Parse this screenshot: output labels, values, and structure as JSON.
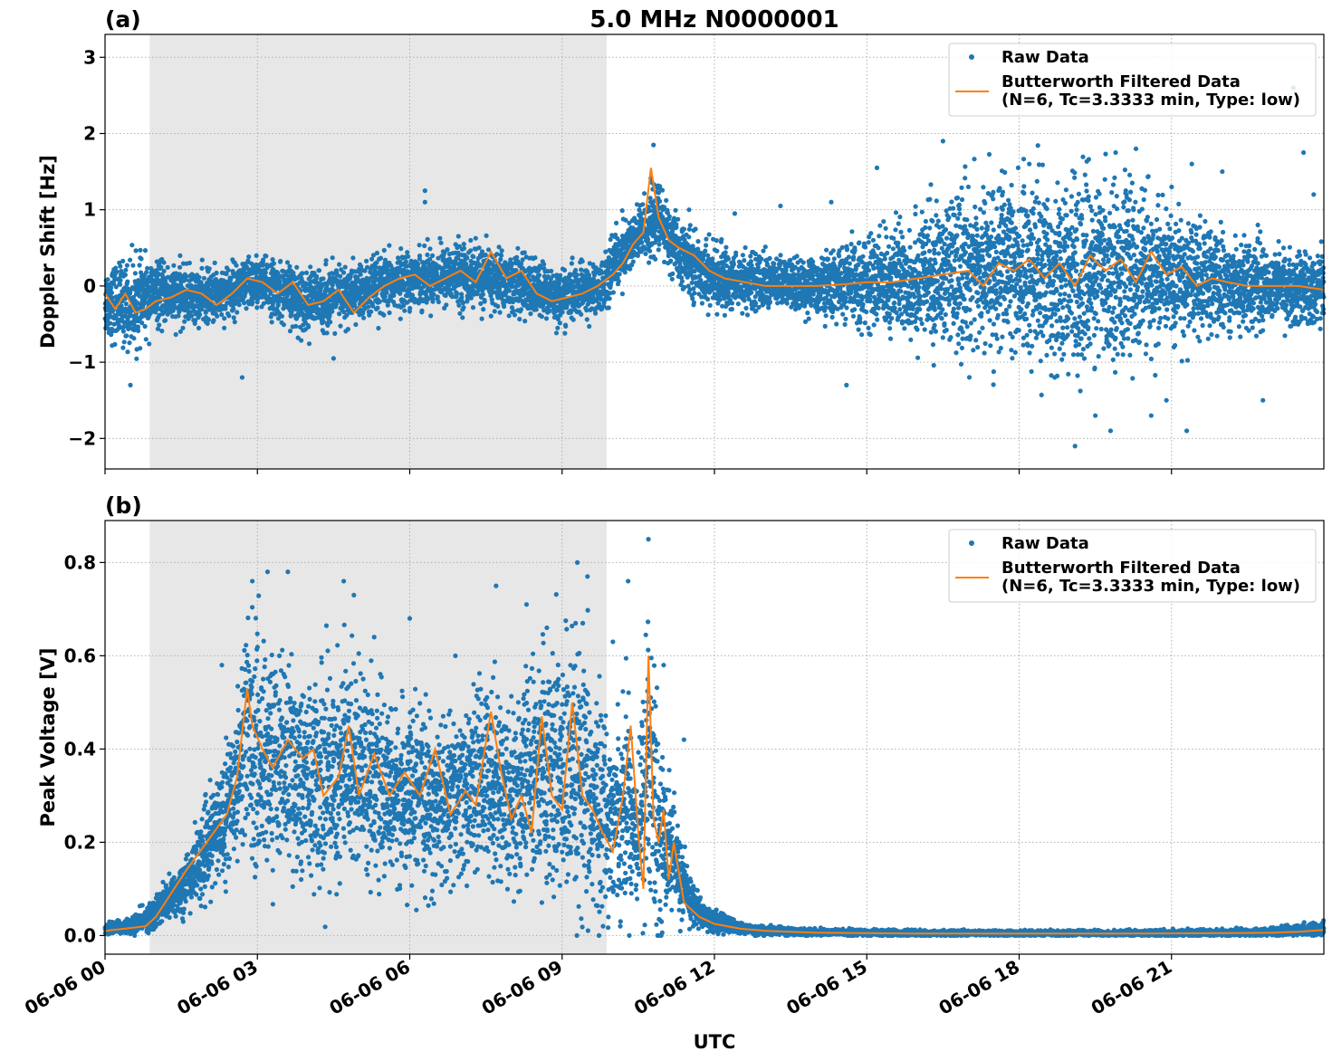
{
  "chart_data": [
    {
      "id": "a",
      "type": "scatter",
      "panel_label": "(a)",
      "title": "5.0 MHz N0000001",
      "xlabel": "",
      "ylabel": "Doppler Shift [Hz]",
      "xlim_hours": [
        0,
        24
      ],
      "ylim": [
        -2.4,
        3.3
      ],
      "yticks": [
        -2,
        -1,
        0,
        1,
        2,
        3
      ],
      "ytick_labels": [
        "−2",
        "−1",
        "0",
        "1",
        "2",
        "3"
      ],
      "shaded_span_hours": [
        0.88,
        9.88
      ],
      "grid": true,
      "legend_position": "top-right",
      "legend": {
        "raw": "Raw Data",
        "filtered_line1": "Butterworth Filtered Data",
        "filtered_line2": "(N=6, Tc=3.3333 min, Type: low)"
      },
      "series": [
        {
          "name": "Raw Data",
          "kind": "scatter",
          "color": "#1f77b4",
          "envelope_hours": [
            0,
            0.5,
            1,
            2,
            3,
            4,
            5,
            6,
            7,
            8,
            9,
            9.8,
            10,
            10.5,
            10.9,
            11.3,
            12,
            13,
            14,
            15,
            16,
            17,
            18,
            19,
            20,
            21,
            22,
            23,
            24
          ],
          "envelope_center": [
            -0.2,
            -0.25,
            -0.1,
            -0.15,
            0.05,
            -0.2,
            -0.1,
            0.1,
            0.15,
            0.05,
            -0.15,
            0.0,
            0.3,
            0.65,
            0.9,
            0.4,
            0.1,
            0.05,
            0.0,
            0.05,
            0.1,
            0.2,
            0.25,
            0.15,
            0.2,
            0.1,
            0.05,
            0.0,
            -0.05
          ],
          "envelope_halfwidth": [
            0.4,
            0.5,
            0.35,
            0.3,
            0.3,
            0.35,
            0.35,
            0.3,
            0.35,
            0.35,
            0.3,
            0.3,
            0.35,
            0.35,
            0.4,
            0.35,
            0.35,
            0.3,
            0.3,
            0.5,
            0.7,
            0.9,
            1.0,
            1.05,
            0.95,
            0.75,
            0.55,
            0.4,
            0.4
          ],
          "outliers": [
            [
              0.5,
              -1.3
            ],
            [
              2.7,
              -1.2
            ],
            [
              4.5,
              -0.95
            ],
            [
              6.3,
              1.25
            ],
            [
              6.3,
              1.1
            ],
            [
              10.8,
              1.85
            ],
            [
              13.3,
              1.05
            ],
            [
              14.3,
              1.1
            ],
            [
              14.6,
              -1.3
            ],
            [
              15.2,
              1.55
            ],
            [
              16.0,
              -0.3
            ],
            [
              16.5,
              1.9
            ],
            [
              17.5,
              -0.5
            ],
            [
              18.2,
              1.6
            ],
            [
              19.1,
              -2.1
            ],
            [
              19.5,
              -1.7
            ],
            [
              19.8,
              -1.9
            ],
            [
              19.9,
              1.75
            ],
            [
              20.1,
              1.25
            ],
            [
              20.3,
              1.8
            ],
            [
              20.6,
              -1.7
            ],
            [
              20.9,
              -1.5
            ],
            [
              21.3,
              -1.9
            ],
            [
              21.4,
              1.6
            ],
            [
              22.0,
              1.5
            ],
            [
              22.8,
              -1.5
            ],
            [
              23.6,
              1.75
            ],
            [
              23.8,
              1.2
            ],
            [
              23.4,
              2.6
            ],
            [
              12.4,
              0.95
            ],
            [
              11.5,
              1.0
            ],
            [
              22.7,
              0.8
            ],
            [
              17.0,
              1.3
            ],
            [
              18.7,
              -1.2
            ]
          ],
          "point_count_hint": 9000
        },
        {
          "name": "Butterworth Filtered Data",
          "kind": "line",
          "color": "#ff7f0e",
          "x_hours": [
            0,
            0.2,
            0.4,
            0.6,
            0.8,
            1.0,
            1.3,
            1.6,
            1.9,
            2.2,
            2.5,
            2.8,
            3.1,
            3.4,
            3.7,
            4.0,
            4.3,
            4.6,
            4.9,
            5.2,
            5.5,
            5.8,
            6.1,
            6.4,
            6.7,
            7.0,
            7.3,
            7.6,
            7.9,
            8.2,
            8.5,
            8.8,
            9.1,
            9.4,
            9.7,
            10.0,
            10.2,
            10.4,
            10.6,
            10.75,
            10.9,
            11.1,
            11.3,
            11.6,
            11.9,
            12.2,
            12.6,
            13.0,
            13.5,
            14.0,
            14.5,
            15.0,
            15.5,
            16.0,
            16.5,
            17.0,
            17.3,
            17.6,
            17.9,
            18.2,
            18.5,
            18.8,
            19.1,
            19.4,
            19.7,
            20.0,
            20.3,
            20.6,
            20.9,
            21.2,
            21.5,
            21.8,
            22.1,
            22.5,
            23.0,
            23.5,
            24.0
          ],
          "y": [
            -0.1,
            -0.3,
            -0.1,
            -0.35,
            -0.3,
            -0.2,
            -0.15,
            -0.05,
            -0.1,
            -0.25,
            -0.1,
            0.1,
            0.05,
            -0.1,
            0.05,
            -0.25,
            -0.2,
            -0.05,
            -0.35,
            -0.15,
            0.0,
            0.1,
            0.15,
            0.0,
            0.1,
            0.2,
            0.05,
            0.45,
            0.1,
            0.2,
            -0.1,
            -0.2,
            -0.15,
            -0.1,
            0.0,
            0.15,
            0.3,
            0.55,
            0.7,
            1.55,
            0.9,
            0.6,
            0.5,
            0.4,
            0.2,
            0.1,
            0.05,
            0.0,
            0.0,
            0.0,
            0.02,
            0.05,
            0.05,
            0.1,
            0.15,
            0.2,
            0.0,
            0.3,
            0.2,
            0.35,
            0.1,
            0.3,
            0.0,
            0.4,
            0.2,
            0.35,
            0.05,
            0.45,
            0.15,
            0.25,
            0.0,
            0.1,
            0.05,
            0.0,
            0.0,
            0.0,
            -0.05
          ]
        }
      ]
    },
    {
      "id": "b",
      "type": "scatter",
      "panel_label": "(b)",
      "title": "",
      "xlabel": "UTC",
      "ylabel": "Peak Voltage [V]",
      "xlim_hours": [
        0,
        24
      ],
      "ylim": [
        -0.04,
        0.89
      ],
      "yticks": [
        0.0,
        0.2,
        0.4,
        0.6,
        0.8
      ],
      "ytick_labels": [
        "0.0",
        "0.2",
        "0.4",
        "0.6",
        "0.8"
      ],
      "xticks_hours": [
        0,
        3,
        6,
        9,
        12,
        15,
        18,
        21
      ],
      "xtick_labels": [
        "06-06 00",
        "06-06 03",
        "06-06 06",
        "06-06 09",
        "06-06 12",
        "06-06 15",
        "06-06 18",
        "06-06 21"
      ],
      "shaded_span_hours": [
        0.88,
        9.88
      ],
      "grid": true,
      "legend_position": "top-right",
      "legend": {
        "raw": "Raw Data",
        "filtered_line1": "Butterworth Filtered Data",
        "filtered_line2": "(N=6, Tc=3.3333 min, Type: low)"
      },
      "series": [
        {
          "name": "Raw Data",
          "kind": "scatter",
          "color": "#1f77b4",
          "envelope_hours": [
            0,
            0.5,
            1,
            1.5,
            2,
            2.5,
            2.8,
            3,
            3.5,
            4,
            4.5,
            5,
            5.5,
            6,
            6.5,
            7,
            7.5,
            8,
            8.5,
            9,
            9.5,
            10,
            10.3,
            10.5,
            10.7,
            10.9,
            11.1,
            11.4,
            11.7,
            12,
            12.5,
            13,
            14,
            16,
            18,
            20,
            22,
            23,
            24
          ],
          "envelope_center": [
            0.015,
            0.02,
            0.05,
            0.1,
            0.18,
            0.3,
            0.45,
            0.38,
            0.38,
            0.33,
            0.35,
            0.38,
            0.3,
            0.3,
            0.28,
            0.3,
            0.35,
            0.3,
            0.35,
            0.35,
            0.3,
            0.25,
            0.3,
            0.2,
            0.4,
            0.2,
            0.2,
            0.1,
            0.05,
            0.03,
            0.015,
            0.01,
            0.007,
            0.005,
            0.005,
            0.005,
            0.006,
            0.008,
            0.015
          ],
          "envelope_halfwidth": [
            0.01,
            0.015,
            0.03,
            0.05,
            0.08,
            0.12,
            0.22,
            0.22,
            0.18,
            0.18,
            0.22,
            0.18,
            0.15,
            0.15,
            0.15,
            0.15,
            0.17,
            0.18,
            0.2,
            0.25,
            0.25,
            0.15,
            0.2,
            0.12,
            0.35,
            0.18,
            0.12,
            0.06,
            0.03,
            0.02,
            0.01,
            0.008,
            0.006,
            0.005,
            0.005,
            0.005,
            0.006,
            0.007,
            0.012
          ],
          "outliers": [
            [
              2.9,
              0.76
            ],
            [
              3.2,
              0.78
            ],
            [
              3.6,
              0.78
            ],
            [
              4.7,
              0.76
            ],
            [
              4.9,
              0.73
            ],
            [
              5.3,
              0.64
            ],
            [
              7.7,
              0.75
            ],
            [
              8.3,
              0.71
            ],
            [
              8.7,
              0.66
            ],
            [
              9.3,
              0.8
            ],
            [
              9.5,
              0.77
            ],
            [
              10.3,
              0.76
            ],
            [
              10.7,
              0.85
            ],
            [
              11.0,
              0.58
            ],
            [
              11.4,
              0.42
            ],
            [
              2.3,
              0.58
            ],
            [
              6.0,
              0.68
            ],
            [
              6.9,
              0.6
            ],
            [
              10.0,
              0.63
            ]
          ],
          "point_count_hint": 9000
        },
        {
          "name": "Butterworth Filtered Data",
          "kind": "line",
          "color": "#ff7f0e",
          "x_hours": [
            0,
            0.4,
            0.8,
            1.0,
            1.3,
            1.6,
            2.0,
            2.4,
            2.6,
            2.8,
            2.9,
            3.1,
            3.3,
            3.6,
            3.9,
            4.1,
            4.3,
            4.6,
            4.8,
            5.0,
            5.3,
            5.6,
            5.9,
            6.2,
            6.5,
            6.8,
            7.1,
            7.3,
            7.6,
            7.8,
            8.0,
            8.2,
            8.4,
            8.6,
            8.8,
            9.0,
            9.2,
            9.4,
            9.6,
            9.8,
            10.0,
            10.2,
            10.35,
            10.5,
            10.6,
            10.7,
            10.8,
            10.9,
            11.0,
            11.1,
            11.2,
            11.4,
            11.7,
            12.0,
            12.5,
            13.0,
            14.0,
            16.0,
            18.0,
            20.0,
            22.0,
            23.0,
            23.5,
            24.0
          ],
          "y": [
            0.01,
            0.015,
            0.02,
            0.04,
            0.09,
            0.14,
            0.2,
            0.26,
            0.34,
            0.53,
            0.45,
            0.4,
            0.36,
            0.42,
            0.38,
            0.4,
            0.3,
            0.34,
            0.45,
            0.3,
            0.39,
            0.3,
            0.35,
            0.3,
            0.4,
            0.26,
            0.31,
            0.28,
            0.48,
            0.35,
            0.25,
            0.3,
            0.22,
            0.47,
            0.3,
            0.27,
            0.5,
            0.3,
            0.27,
            0.22,
            0.18,
            0.3,
            0.45,
            0.22,
            0.1,
            0.6,
            0.25,
            0.2,
            0.27,
            0.12,
            0.2,
            0.07,
            0.04,
            0.025,
            0.015,
            0.01,
            0.006,
            0.004,
            0.004,
            0.004,
            0.005,
            0.006,
            0.008,
            0.012
          ]
        }
      ]
    }
  ]
}
